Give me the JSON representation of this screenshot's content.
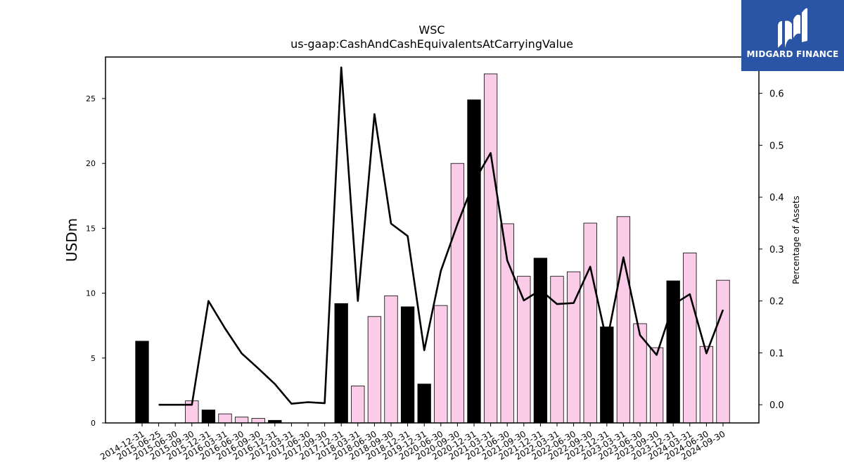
{
  "chart_data": {
    "type": "bar",
    "title": "WSC",
    "subtitle": "us-gaap:CashAndCashEquivalentsAtCarryingValue",
    "ylabel": "USDm",
    "ylabel_right": "Percentage of Assets",
    "ylim": [
      0,
      28.2
    ],
    "ylim_right": [
      -0.035,
      0.67
    ],
    "yticks": [
      0,
      5,
      10,
      15,
      20,
      25
    ],
    "yticks_right": [
      0.0,
      0.1,
      0.2,
      0.3,
      0.4,
      0.5,
      0.6
    ],
    "categories": [
      "2014-12-31",
      "2015-06-25",
      "2015-06-30",
      "2015-09-30",
      "2015-12-31",
      "2016-03-31",
      "2016-06-30",
      "2016-09-30",
      "2016-12-31",
      "2017-03-31",
      "2017-06-30",
      "2017-09-30",
      "2017-12-31",
      "2018-03-31",
      "2018-06-30",
      "2018-09-30",
      "2018-12-31",
      "2019-12-31",
      "2020-06-30",
      "2020-09-30",
      "2020-12-31",
      "2021-03-31",
      "2021-06-30",
      "2021-09-30",
      "2021-12-31",
      "2022-03-31",
      "2022-06-30",
      "2022-09-30",
      "2022-12-31",
      "2023-03-31",
      "2023-06-30",
      "2023-09-30",
      "2023-12-31",
      "2024-03-31",
      "2024-06-30",
      "2024-09-30"
    ],
    "series": [
      {
        "values": [
          6.3,
          0,
          0,
          1.7,
          1.0,
          0.7,
          0.45,
          0.35,
          0.2,
          0,
          0,
          0,
          9.2,
          2.85,
          8.2,
          9.8,
          8.95,
          3.0,
          9.05,
          20.0,
          24.9,
          26.9,
          15.35,
          11.3,
          12.7,
          11.3,
          11.65,
          15.4,
          7.4,
          15.9,
          7.65,
          5.8,
          10.95,
          13.1,
          5.9,
          11.0
        ],
        "annual": [
          true,
          false,
          false,
          false,
          true,
          false,
          false,
          false,
          true,
          false,
          false,
          false,
          true,
          false,
          false,
          false,
          true,
          true,
          false,
          false,
          true,
          false,
          false,
          false,
          true,
          false,
          false,
          false,
          true,
          false,
          false,
          false,
          true,
          false,
          false,
          false
        ]
      },
      {
        "axis": "right",
        "type": "line",
        "values": [
          null,
          0.0,
          0.0,
          0.0,
          0.2,
          0.147,
          0.099,
          0.07,
          0.04,
          0.002,
          0.005,
          0.003,
          0.65,
          0.2,
          0.56,
          0.349,
          0.325,
          0.105,
          0.258,
          0.348,
          0.43,
          0.485,
          0.278,
          0.201,
          0.221,
          0.194,
          0.196,
          0.266,
          0.121,
          0.284,
          0.134,
          0.096,
          0.193,
          0.213,
          0.099,
          0.183
        ]
      }
    ],
    "colors": {
      "annual_bar": "#000000",
      "quarter_bar": "#fbcce7",
      "line": "#000000"
    }
  },
  "logo": {
    "text": "MIDGARD FINANCE",
    "background": "#2a55a6"
  }
}
